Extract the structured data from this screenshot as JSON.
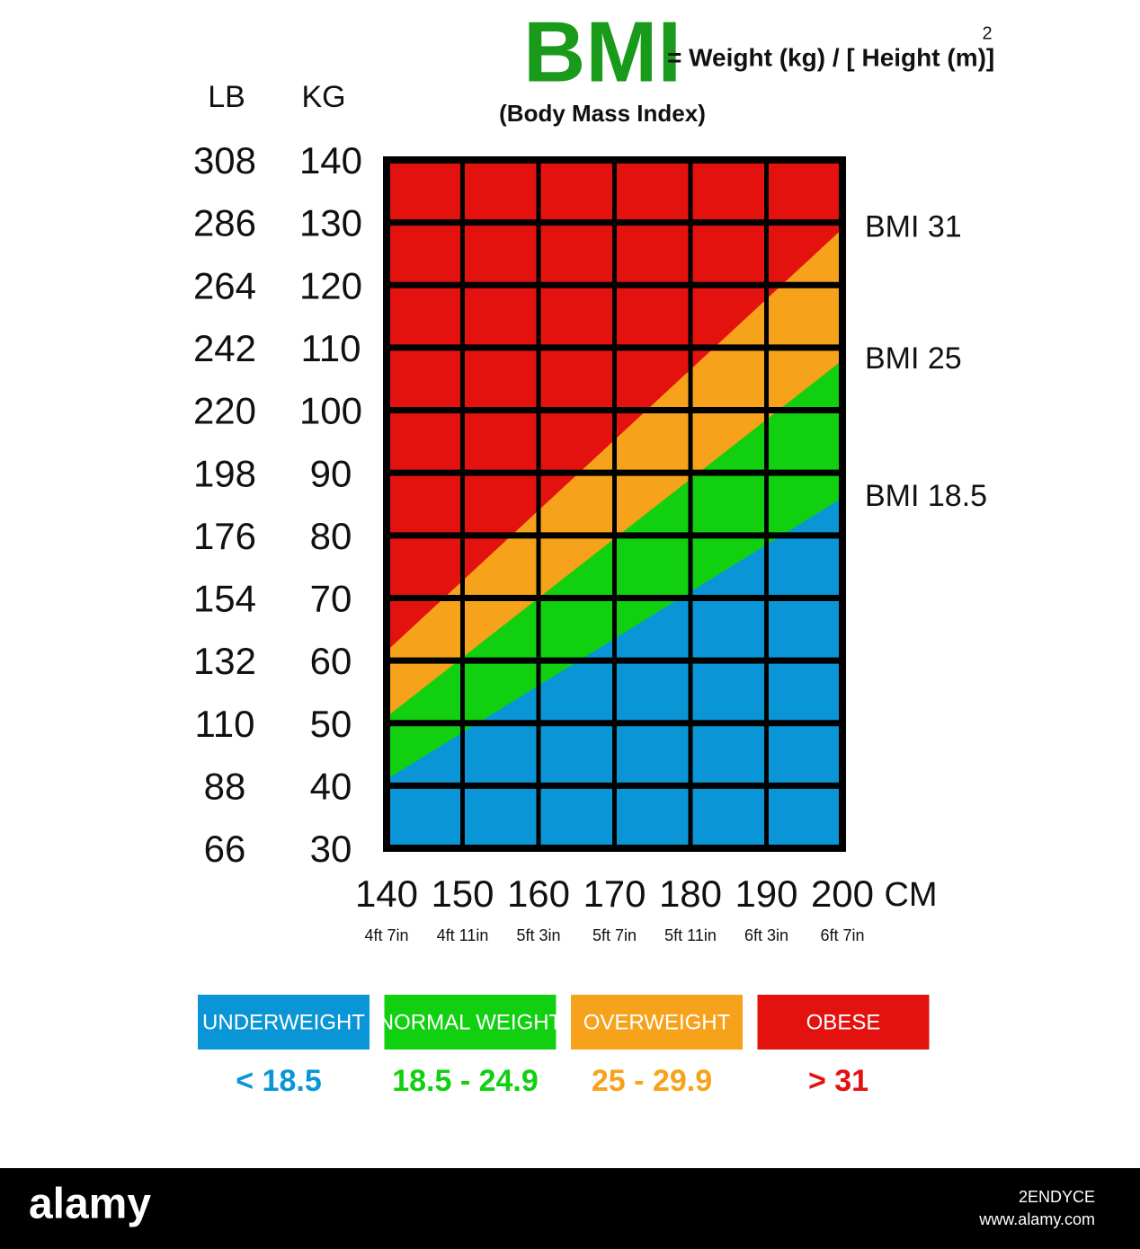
{
  "chart_data": {
    "type": "area",
    "title": "BMI",
    "formula": "= Weight (kg) / [ Height (m)]",
    "formula_exponent": "2",
    "subtitle": "(Body Mass Index)",
    "ylabel": "KG",
    "y2label": "LB",
    "xlabel": "CM",
    "xlim": [
      140,
      200
    ],
    "xticks": [
      140,
      150,
      160,
      170,
      180,
      190,
      200
    ],
    "xtick_sublabels": [
      "4ft 7in",
      "4ft 11in",
      "5ft 3in",
      "5ft 7in",
      "5ft 11in",
      "6ft 3in",
      "6ft 7in"
    ],
    "ylim": [
      30,
      140
    ],
    "yticks": [
      30,
      40,
      50,
      60,
      70,
      80,
      90,
      100,
      110,
      120,
      130,
      140
    ],
    "y2lim": [
      66,
      308
    ],
    "y2ticks": [
      66,
      88,
      110,
      132,
      154,
      176,
      198,
      220,
      242,
      264,
      286,
      308
    ],
    "top_color": "#e3120f",
    "x": [
      140,
      200
    ],
    "series": [
      {
        "name": "BMI 31",
        "color": "#f7a21b",
        "values": [
          61.5,
          129
        ]
      },
      {
        "name": "BMI 25",
        "color": "#10d010",
        "values": [
          51,
          108
        ]
      },
      {
        "name": "BMI 18.5",
        "color": "#0a96d6",
        "values": [
          41,
          86
        ]
      }
    ],
    "legend": [
      {
        "name": "UNDERWEIGHT",
        "range": "< 18.5",
        "color": "#0a96d6"
      },
      {
        "name": "NORMAL WEIGHT",
        "range": "18.5 - 24.9",
        "color": "#10d010"
      },
      {
        "name": "OVERWEIGHT",
        "range": "25 - 29.9",
        "color": "#f7a21b"
      },
      {
        "name": "OBESE",
        "range": "> 31",
        "color": "#e3120f"
      }
    ]
  },
  "footer": {
    "brand": "alamy",
    "image_id": "2ENDYCE",
    "url": "www.alamy.com"
  }
}
